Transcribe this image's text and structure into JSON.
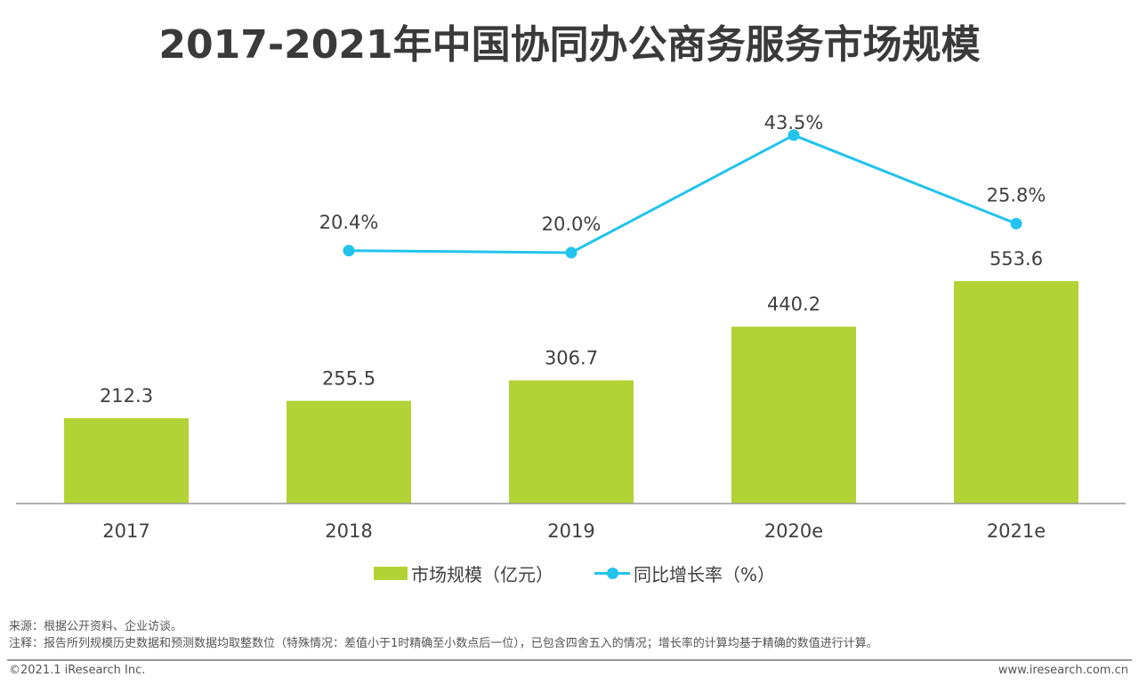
{
  "chart_data": {
    "type": "bar+line",
    "title": "2017-2021年中国协同办公商务服务市场规模",
    "categories": [
      "2017",
      "2018",
      "2019",
      "2020e",
      "2021e"
    ],
    "series": [
      {
        "name": "市场规模（亿元）",
        "type": "bar",
        "color": "#b2d235",
        "values": [
          212.3,
          255.5,
          306.7,
          440.2,
          553.6
        ],
        "labels": [
          "212.3",
          "255.5",
          "306.7",
          "440.2",
          "553.6"
        ]
      },
      {
        "name": "同比增长率（%）",
        "type": "line",
        "color": "#22c3ec",
        "values": [
          null,
          20.4,
          20.0,
          43.5,
          25.8
        ],
        "labels": [
          "",
          "20.4%",
          "20.0%",
          "43.5%",
          "25.8%"
        ]
      }
    ],
    "legend": "bottom",
    "grid": false
  },
  "footer": {
    "source": "来源：根据公开资料、企业访谈。",
    "note": "注释：报告所列规模历史数据和预测数据均取整数位（特殊情况：差值小于1时精确至小数点后一位），已包含四舍五入的情况；增长率的计算均基于精确的数值进行计算。",
    "copyright": "©2021.1 iResearch Inc.",
    "url": "www.iresearch.com.cn"
  }
}
